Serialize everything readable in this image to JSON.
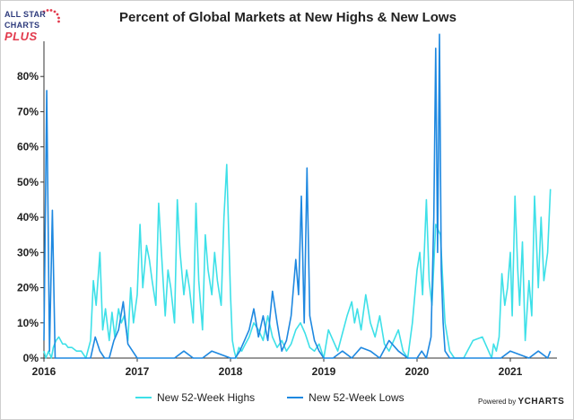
{
  "logo": {
    "line1": "ALL STAR",
    "line2": "CHARTS",
    "line3": "PLUS"
  },
  "footer": {
    "powered_by": "Powered by",
    "brand": "YCHARTS"
  },
  "chart_data": {
    "type": "line",
    "title": "Percent of Global Markets at New Highs & New Lows",
    "xlabel": "",
    "ylabel": "",
    "xlim": [
      2016.0,
      2021.5
    ],
    "ylim": [
      0,
      0.9
    ],
    "x_ticks": [
      2016,
      2017,
      2018,
      2019,
      2020,
      2021
    ],
    "x_tick_labels": [
      "2016",
      "2017",
      "2018",
      "2019",
      "2020",
      "2021"
    ],
    "y_ticks": [
      0,
      0.1,
      0.2,
      0.3,
      0.4,
      0.5,
      0.6,
      0.7,
      0.8
    ],
    "y_tick_labels": [
      "0%",
      "10%",
      "20%",
      "30%",
      "40%",
      "50%",
      "60%",
      "70%",
      "80%"
    ],
    "grid": false,
    "legend_position": "bottom",
    "series": [
      {
        "name": "New 52-Week Highs",
        "color": "#3ee0e8",
        "x": [
          2016.0,
          2016.02,
          2016.05,
          2016.08,
          2016.1,
          2016.13,
          2016.16,
          2016.2,
          2016.23,
          2016.26,
          2016.3,
          2016.35,
          2016.4,
          2016.45,
          2016.5,
          2016.53,
          2016.56,
          2016.6,
          2016.63,
          2016.66,
          2016.7,
          2016.73,
          2016.76,
          2016.8,
          2016.83,
          2016.86,
          2016.9,
          2016.93,
          2016.96,
          2017.0,
          2017.03,
          2017.06,
          2017.1,
          2017.13,
          2017.16,
          2017.2,
          2017.23,
          2017.26,
          2017.3,
          2017.33,
          2017.36,
          2017.4,
          2017.43,
          2017.46,
          2017.5,
          2017.53,
          2017.56,
          2017.6,
          2017.63,
          2017.66,
          2017.7,
          2017.73,
          2017.76,
          2017.8,
          2017.83,
          2017.86,
          2017.9,
          2017.93,
          2017.96,
          2018.0,
          2018.02,
          2018.04,
          2018.06,
          2018.09,
          2018.12,
          2018.16,
          2018.2,
          2018.25,
          2018.3,
          2018.35,
          2018.4,
          2018.45,
          2018.5,
          2018.55,
          2018.6,
          2018.65,
          2018.7,
          2018.75,
          2018.8,
          2018.85,
          2018.9,
          2018.95,
          2019.0,
          2019.05,
          2019.1,
          2019.15,
          2019.2,
          2019.25,
          2019.3,
          2019.33,
          2019.36,
          2019.4,
          2019.45,
          2019.5,
          2019.55,
          2019.6,
          2019.65,
          2019.7,
          2019.75,
          2019.8,
          2019.85,
          2019.9,
          2019.95,
          2020.0,
          2020.03,
          2020.06,
          2020.1,
          2020.13,
          2020.16,
          2020.2,
          2020.25,
          2020.3,
          2020.35,
          2020.4,
          2020.5,
          2020.6,
          2020.7,
          2020.8,
          2020.82,
          2020.85,
          2020.88,
          2020.91,
          2020.94,
          2020.97,
          2021.0,
          2021.02,
          2021.05,
          2021.08,
          2021.1,
          2021.13,
          2021.16,
          2021.2,
          2021.23,
          2021.26,
          2021.3,
          2021.33,
          2021.36,
          2021.4,
          2021.43
        ],
        "y": [
          0.02,
          0.0,
          0.02,
          0.0,
          0.03,
          0.05,
          0.06,
          0.04,
          0.04,
          0.03,
          0.03,
          0.02,
          0.02,
          0.0,
          0.05,
          0.22,
          0.15,
          0.3,
          0.08,
          0.14,
          0.05,
          0.13,
          0.06,
          0.14,
          0.1,
          0.12,
          0.05,
          0.2,
          0.1,
          0.18,
          0.38,
          0.2,
          0.32,
          0.28,
          0.22,
          0.15,
          0.44,
          0.3,
          0.12,
          0.25,
          0.2,
          0.1,
          0.45,
          0.3,
          0.18,
          0.25,
          0.2,
          0.1,
          0.44,
          0.22,
          0.08,
          0.35,
          0.25,
          0.18,
          0.3,
          0.22,
          0.15,
          0.4,
          0.55,
          0.18,
          0.05,
          0.02,
          0.0,
          0.03,
          0.02,
          0.04,
          0.06,
          0.1,
          0.08,
          0.05,
          0.12,
          0.06,
          0.03,
          0.05,
          0.02,
          0.04,
          0.08,
          0.1,
          0.07,
          0.03,
          0.02,
          0.04,
          0.0,
          0.08,
          0.05,
          0.02,
          0.07,
          0.12,
          0.16,
          0.1,
          0.14,
          0.08,
          0.18,
          0.1,
          0.06,
          0.12,
          0.04,
          0.02,
          0.05,
          0.08,
          0.02,
          0.0,
          0.1,
          0.25,
          0.3,
          0.18,
          0.45,
          0.22,
          0.15,
          0.38,
          0.35,
          0.1,
          0.02,
          0.0,
          0.0,
          0.05,
          0.06,
          0.0,
          0.04,
          0.02,
          0.06,
          0.24,
          0.15,
          0.2,
          0.3,
          0.12,
          0.46,
          0.25,
          0.15,
          0.33,
          0.05,
          0.22,
          0.12,
          0.46,
          0.2,
          0.4,
          0.22,
          0.3,
          0.48
        ]
      },
      {
        "name": "New 52-Week Lows",
        "color": "#1e88e0",
        "x": [
          2016.0,
          2016.03,
          2016.06,
          2016.09,
          2016.12,
          2016.15,
          2016.2,
          2016.3,
          2016.4,
          2016.5,
          2016.55,
          2016.6,
          2016.65,
          2016.7,
          2016.75,
          2016.8,
          2016.85,
          2016.9,
          2016.95,
          2017.0,
          2017.2,
          2017.4,
          2017.5,
          2017.6,
          2017.7,
          2017.8,
          2017.9,
          2018.0,
          2018.05,
          2018.1,
          2018.15,
          2018.2,
          2018.25,
          2018.3,
          2018.35,
          2018.4,
          2018.45,
          2018.5,
          2018.55,
          2018.6,
          2018.65,
          2018.7,
          2018.73,
          2018.76,
          2018.79,
          2018.82,
          2018.85,
          2018.9,
          2018.95,
          2019.0,
          2019.1,
          2019.2,
          2019.3,
          2019.4,
          2019.5,
          2019.6,
          2019.7,
          2019.8,
          2019.9,
          2020.0,
          2020.05,
          2020.1,
          2020.15,
          2020.18,
          2020.2,
          2020.22,
          2020.24,
          2020.26,
          2020.28,
          2020.3,
          2020.35,
          2020.4,
          2020.5,
          2020.7,
          2020.9,
          2021.0,
          2021.2,
          2021.3,
          2021.4,
          2021.43
        ],
        "y": [
          0.05,
          0.76,
          0.02,
          0.42,
          0.0,
          0.0,
          0.0,
          0.0,
          0.0,
          0.0,
          0.06,
          0.02,
          0.0,
          0.0,
          0.05,
          0.08,
          0.16,
          0.04,
          0.02,
          0.0,
          0.0,
          0.0,
          0.02,
          0.0,
          0.0,
          0.02,
          0.01,
          0.0,
          0.0,
          0.02,
          0.05,
          0.08,
          0.14,
          0.06,
          0.12,
          0.05,
          0.19,
          0.1,
          0.02,
          0.05,
          0.12,
          0.28,
          0.18,
          0.46,
          0.1,
          0.54,
          0.12,
          0.05,
          0.02,
          0.0,
          0.0,
          0.02,
          0.0,
          0.03,
          0.02,
          0.0,
          0.05,
          0.02,
          0.0,
          0.0,
          0.02,
          0.0,
          0.06,
          0.4,
          0.88,
          0.3,
          0.92,
          0.25,
          0.1,
          0.02,
          0.0,
          0.0,
          0.0,
          0.0,
          0.0,
          0.02,
          0.0,
          0.02,
          0.0,
          0.02
        ]
      }
    ]
  }
}
